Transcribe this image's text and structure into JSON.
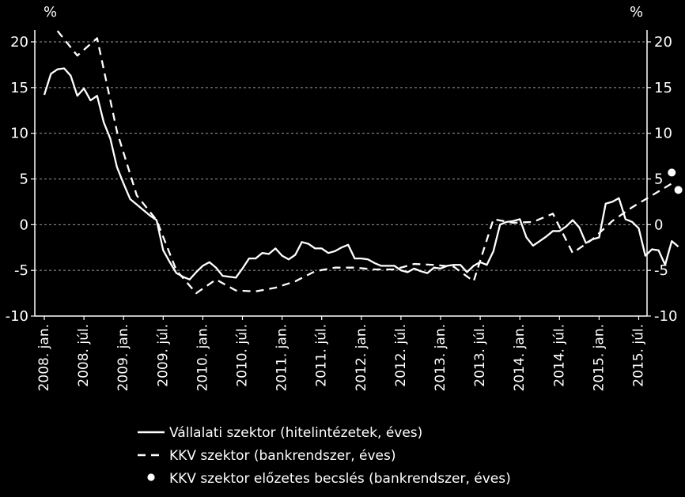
{
  "chart_data": {
    "type": "line",
    "title": "",
    "unit_left": "%",
    "unit_right": "%",
    "ylim": [
      -10,
      20
    ],
    "yticks": [
      -10,
      -5,
      0,
      5,
      10,
      15,
      20
    ],
    "ytick_labels": [
      "-10",
      "-5",
      "0",
      "5",
      "10",
      "15",
      "20"
    ],
    "grid": "horizontal dashed",
    "x_axis": {
      "start": "2008-01",
      "end": "2015-12",
      "tick_labels": [
        "2008. jan.",
        "2008. júl.",
        "2009. jan.",
        "2009. júl.",
        "2010. jan.",
        "2010. júl.",
        "2011. jan.",
        "2011. júl.",
        "2012. jan.",
        "2012. júl.",
        "2013. jan.",
        "2013. júl.",
        "2014. jan.",
        "2014. júl.",
        "2015. jan.",
        "2015. júl."
      ]
    },
    "legend_position": "bottom",
    "colors": {
      "background": "#000000",
      "foreground": "#ffffff",
      "grid": "#9a9a9a"
    },
    "series": [
      {
        "name": "Vállalati szektor (hitelintézetek, éves)",
        "style": "solid",
        "points": [
          [
            "2008-01",
            14.2
          ],
          [
            "2008-02",
            16.5
          ],
          [
            "2008-03",
            17.0
          ],
          [
            "2008-04",
            17.1
          ],
          [
            "2008-05",
            16.3
          ],
          [
            "2008-06",
            14.1
          ],
          [
            "2008-07",
            14.9
          ],
          [
            "2008-08",
            13.6
          ],
          [
            "2008-09",
            14.1
          ],
          [
            "2008-10",
            11.2
          ],
          [
            "2008-11",
            9.4
          ],
          [
            "2008-12",
            6.3
          ],
          [
            "2009-01",
            4.5
          ],
          [
            "2009-02",
            2.8
          ],
          [
            "2009-03",
            2.2
          ],
          [
            "2009-04",
            1.6
          ],
          [
            "2009-05",
            1.0
          ],
          [
            "2009-06",
            0.5
          ],
          [
            "2009-07",
            -2.8
          ],
          [
            "2009-08",
            -4.1
          ],
          [
            "2009-09",
            -5.3
          ],
          [
            "2009-10",
            -5.7
          ],
          [
            "2009-11",
            -6.0
          ],
          [
            "2009-12",
            -5.2
          ],
          [
            "2010-01",
            -4.5
          ],
          [
            "2010-02",
            -4.1
          ],
          [
            "2010-03",
            -4.7
          ],
          [
            "2010-04",
            -5.6
          ],
          [
            "2010-05",
            -5.7
          ],
          [
            "2010-06",
            -5.8
          ],
          [
            "2010-07",
            -4.8
          ],
          [
            "2010-08",
            -3.7
          ],
          [
            "2010-09",
            -3.7
          ],
          [
            "2010-10",
            -3.1
          ],
          [
            "2010-11",
            -3.2
          ],
          [
            "2010-12",
            -2.6
          ],
          [
            "2011-01",
            -3.4
          ],
          [
            "2011-02",
            -3.8
          ],
          [
            "2011-03",
            -3.3
          ],
          [
            "2011-04",
            -1.9
          ],
          [
            "2011-05",
            -2.1
          ],
          [
            "2011-06",
            -2.6
          ],
          [
            "2011-07",
            -2.6
          ],
          [
            "2011-08",
            -3.1
          ],
          [
            "2011-09",
            -2.9
          ],
          [
            "2011-10",
            -2.5
          ],
          [
            "2011-11",
            -2.2
          ],
          [
            "2011-12",
            -3.7
          ],
          [
            "2012-01",
            -3.7
          ],
          [
            "2012-02",
            -3.8
          ],
          [
            "2012-03",
            -4.2
          ],
          [
            "2012-04",
            -4.5
          ],
          [
            "2012-05",
            -4.5
          ],
          [
            "2012-06",
            -4.5
          ],
          [
            "2012-07",
            -5.0
          ],
          [
            "2012-08",
            -5.2
          ],
          [
            "2012-09",
            -4.8
          ],
          [
            "2012-10",
            -5.1
          ],
          [
            "2012-11",
            -5.3
          ],
          [
            "2012-12",
            -4.7
          ],
          [
            "2013-01",
            -4.8
          ],
          [
            "2013-02",
            -4.5
          ],
          [
            "2013-03",
            -4.4
          ],
          [
            "2013-04",
            -4.4
          ],
          [
            "2013-05",
            -5.2
          ],
          [
            "2013-06",
            -4.5
          ],
          [
            "2013-07",
            -4.1
          ],
          [
            "2013-08",
            -4.4
          ],
          [
            "2013-09",
            -2.9
          ],
          [
            "2013-10",
            0.0
          ],
          [
            "2013-11",
            0.3
          ],
          [
            "2013-12",
            0.4
          ],
          [
            "2014-01",
            0.6
          ],
          [
            "2014-02",
            -1.4
          ],
          [
            "2014-03",
            -2.3
          ],
          [
            "2014-04",
            -1.8
          ],
          [
            "2014-05",
            -1.3
          ],
          [
            "2014-06",
            -0.7
          ],
          [
            "2014-07",
            -0.7
          ],
          [
            "2014-08",
            -0.2
          ],
          [
            "2014-09",
            0.5
          ],
          [
            "2014-10",
            -0.3
          ],
          [
            "2014-11",
            -2.0
          ],
          [
            "2014-12",
            -1.6
          ],
          [
            "2015-01",
            -1.4
          ],
          [
            "2015-02",
            2.3
          ],
          [
            "2015-03",
            2.5
          ],
          [
            "2015-04",
            2.9
          ],
          [
            "2015-05",
            0.6
          ],
          [
            "2015-06",
            0.3
          ],
          [
            "2015-07",
            -0.4
          ],
          [
            "2015-08",
            -3.4
          ],
          [
            "2015-09",
            -2.7
          ],
          [
            "2015-10",
            -2.8
          ],
          [
            "2015-11",
            -4.4
          ],
          [
            "2015-12",
            -1.8
          ],
          [
            "2016-01",
            -2.4
          ]
        ]
      },
      {
        "name": "KKV szektor (bankrendszer, éves)",
        "style": "dashed",
        "points": [
          [
            "2008-03",
            21.2
          ],
          [
            "2008-06",
            18.5
          ],
          [
            "2008-09",
            20.4
          ],
          [
            "2008-12",
            10.2
          ],
          [
            "2009-03",
            3.2
          ],
          [
            "2009-06",
            0.5
          ],
          [
            "2009-09",
            -5.0
          ],
          [
            "2009-12",
            -7.5
          ],
          [
            "2010-03",
            -6.0
          ],
          [
            "2010-06",
            -7.2
          ],
          [
            "2010-09",
            -7.3
          ],
          [
            "2010-12",
            -6.9
          ],
          [
            "2011-03",
            -6.2
          ],
          [
            "2011-06",
            -5.1
          ],
          [
            "2011-09",
            -4.7
          ],
          [
            "2011-12",
            -4.7
          ],
          [
            "2012-03",
            -4.9
          ],
          [
            "2012-06",
            -4.9
          ],
          [
            "2012-09",
            -4.3
          ],
          [
            "2012-12",
            -4.4
          ],
          [
            "2013-03",
            -4.6
          ],
          [
            "2013-06",
            -6.2
          ],
          [
            "2013-09",
            0.6
          ],
          [
            "2013-12",
            0.2
          ],
          [
            "2014-03",
            0.3
          ],
          [
            "2014-06",
            1.2
          ],
          [
            "2014-09",
            -3.1
          ],
          [
            "2014-12",
            -1.6
          ],
          [
            "2015-03",
            0.4
          ],
          [
            "2015-06",
            1.9
          ],
          [
            "2015-09",
            3.2
          ],
          [
            "2015-12",
            4.5
          ]
        ]
      },
      {
        "name": "KKV szektor előzetes becslés (bankrendszer, éves)",
        "style": "markers",
        "points": [
          [
            "2015-12",
            5.7
          ],
          [
            "2016-01",
            3.8
          ]
        ]
      }
    ]
  }
}
